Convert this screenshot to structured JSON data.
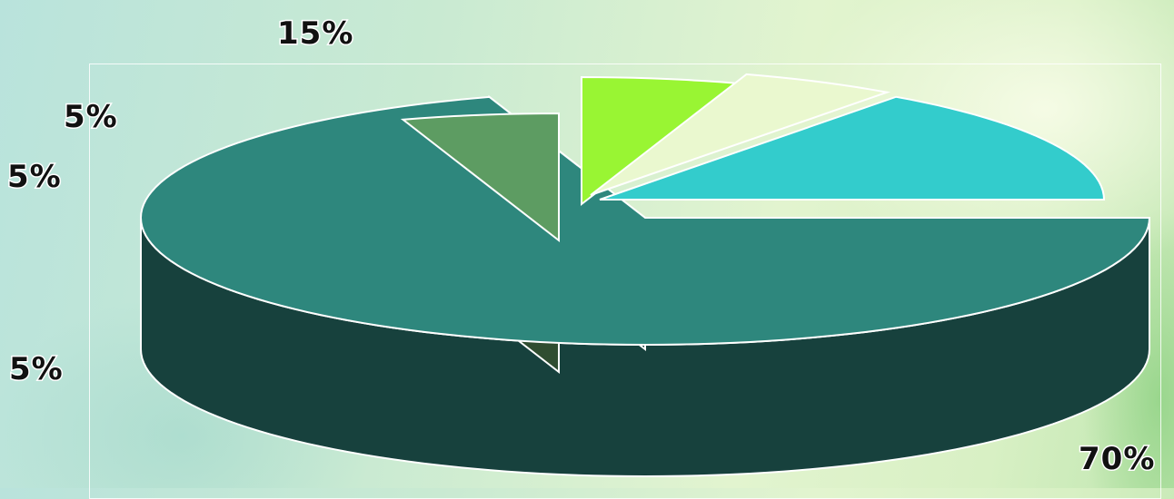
{
  "chart_data": {
    "type": "pie",
    "style": "3d-exploded",
    "slices": [
      {
        "label": "70%",
        "value": 70,
        "color": "#2e877d",
        "side": "#17413d"
      },
      {
        "label": "5%",
        "value": 5,
        "color": "#5d9c62",
        "side": "#2f4d30"
      },
      {
        "label": "5%",
        "value": 5,
        "color": "#99f533",
        "side": "#5f9a20"
      },
      {
        "label": "5%",
        "value": 5,
        "color": "#eaf8cf",
        "side": "#a8b896"
      },
      {
        "label": "15%",
        "value": 15,
        "color": "#33cccc",
        "side": "#1d7a80"
      }
    ]
  }
}
